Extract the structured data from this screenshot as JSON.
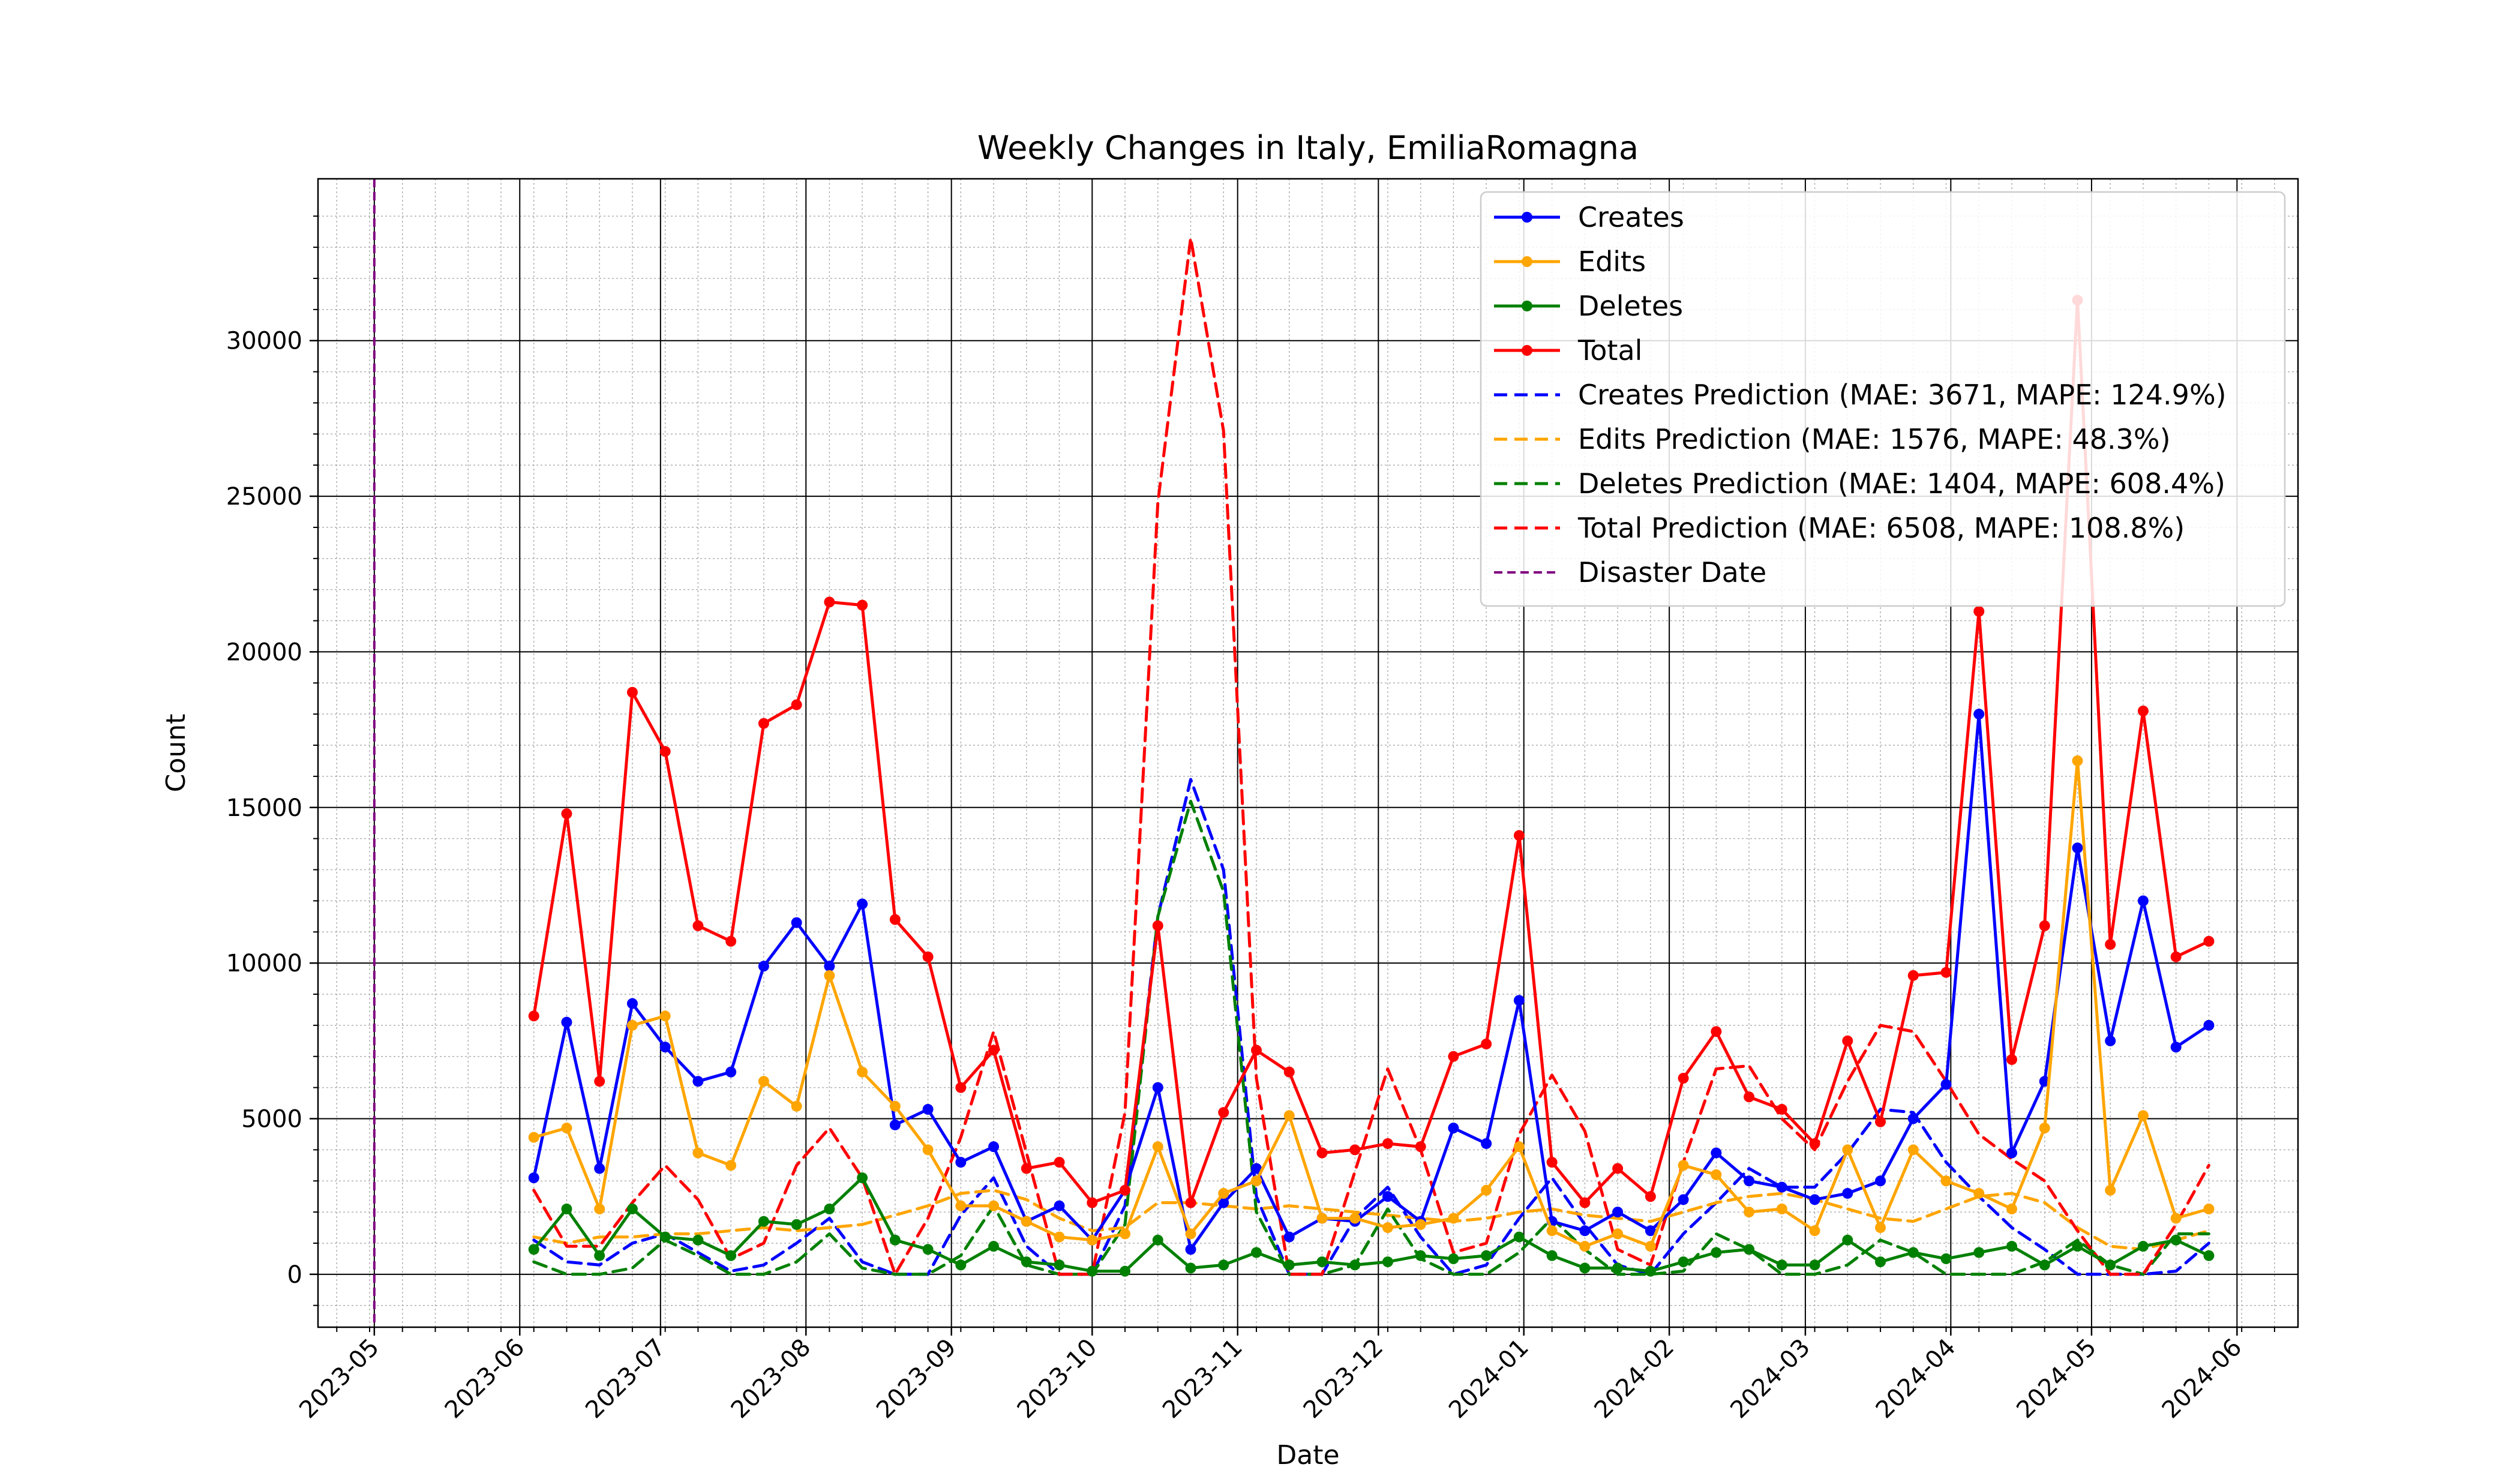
{
  "chart_data": {
    "type": "line",
    "title": "Weekly Changes in Italy, EmiliaRomagna",
    "xlabel": "Date",
    "ylabel": "Count",
    "xlim": [
      "2023-04-19",
      "2024-06-14"
    ],
    "ylim": [
      -1700,
      35200
    ],
    "x_ticks": [
      "2023-05",
      "2023-06",
      "2023-07",
      "2023-08",
      "2023-09",
      "2023-10",
      "2023-11",
      "2023-12",
      "2024-01",
      "2024-02",
      "2024-03",
      "2024-04",
      "2024-05",
      "2024-06"
    ],
    "y_ticks": [
      0,
      5000,
      10000,
      15000,
      20000,
      25000,
      30000
    ],
    "grid": true,
    "legend_position": "upper right",
    "dates": [
      "2023-06-04",
      "2023-06-11",
      "2023-06-18",
      "2023-06-25",
      "2023-07-02",
      "2023-07-09",
      "2023-07-16",
      "2023-07-23",
      "2023-07-30",
      "2023-08-06",
      "2023-08-13",
      "2023-08-20",
      "2023-08-27",
      "2023-09-03",
      "2023-09-10",
      "2023-09-17",
      "2023-09-24",
      "2023-10-01",
      "2023-10-08",
      "2023-10-15",
      "2023-10-22",
      "2023-10-29",
      "2023-11-05",
      "2023-11-12",
      "2023-11-19",
      "2023-11-26",
      "2023-12-03",
      "2023-12-10",
      "2023-12-17",
      "2023-12-24",
      "2023-12-31",
      "2024-01-07",
      "2024-01-14",
      "2024-01-21",
      "2024-01-28",
      "2024-02-04",
      "2024-02-11",
      "2024-02-18",
      "2024-02-25",
      "2024-03-03",
      "2024-03-10",
      "2024-03-17",
      "2024-03-24",
      "2024-03-31",
      "2024-04-07",
      "2024-04-14",
      "2024-04-21",
      "2024-04-28",
      "2024-05-05",
      "2024-05-12",
      "2024-05-19",
      "2024-05-26"
    ],
    "series": [
      {
        "name": "Creates",
        "style": "solid-marker",
        "color": "#0000ff",
        "values": [
          3100,
          8100,
          3400,
          8700,
          7300,
          6200,
          6500,
          9900,
          11300,
          9900,
          11900,
          4800,
          5300,
          3600,
          4100,
          1700,
          2200,
          1100,
          2700,
          6000,
          800,
          2300,
          3400,
          1200,
          1800,
          1700,
          2500,
          1700,
          4700,
          4200,
          8800,
          1700,
          1400,
          2000,
          1400,
          2400,
          3900,
          3000,
          2800,
          2400,
          2600,
          3000,
          5000,
          6100,
          18000,
          3900,
          6200,
          13700,
          7500,
          12000,
          7300,
          8000
        ]
      },
      {
        "name": "Edits",
        "style": "solid-marker",
        "color": "#ffa500",
        "values": [
          4400,
          4700,
          2100,
          8000,
          8300,
          3900,
          3500,
          6200,
          5400,
          9600,
          6500,
          5400,
          4000,
          2200,
          2200,
          1700,
          1200,
          1100,
          1300,
          4100,
          1300,
          2600,
          3000,
          5100,
          1800,
          1800,
          1500,
          1600,
          1800,
          2700,
          4100,
          1400,
          900,
          1300,
          900,
          3500,
          3200,
          2000,
          2100,
          1400,
          4000,
          1500,
          4000,
          3000,
          2600,
          2100,
          4700,
          16500,
          2700,
          5100,
          1800,
          2100
        ]
      },
      {
        "name": "Deletes",
        "style": "solid-marker",
        "color": "#008000",
        "values": [
          800,
          2100,
          600,
          2100,
          1200,
          1100,
          600,
          1700,
          1600,
          2100,
          3100,
          1100,
          800,
          300,
          900,
          400,
          300,
          100,
          100,
          1100,
          200,
          300,
          700,
          300,
          400,
          300,
          400,
          600,
          500,
          600,
          1200,
          600,
          200,
          200,
          100,
          400,
          700,
          800,
          300,
          300,
          1100,
          400,
          700,
          500,
          700,
          900,
          300,
          900,
          300,
          900,
          1100,
          600
        ]
      },
      {
        "name": "Total",
        "style": "solid-marker",
        "color": "#ff0000",
        "values": [
          8300,
          14800,
          6200,
          18700,
          16800,
          11200,
          10700,
          17700,
          18300,
          21600,
          21500,
          11400,
          10200,
          6000,
          7200,
          3400,
          3600,
          2300,
          2700,
          11200,
          2300,
          5200,
          7200,
          6500,
          3900,
          4000,
          4200,
          4100,
          7000,
          7400,
          14100,
          3600,
          2300,
          3400,
          2500,
          6300,
          7800,
          5700,
          5300,
          4200,
          7500,
          4900,
          9600,
          9700,
          21300,
          6900,
          11200,
          31300,
          10600,
          18100,
          10200,
          10700
        ]
      },
      {
        "name": "Creates Prediction (MAE: 3671, MAPE: 124.9%)",
        "style": "dashed",
        "color": "#0000ff",
        "values": [
          1100,
          400,
          300,
          1000,
          1300,
          700,
          100,
          300,
          1000,
          1800,
          400,
          0,
          0,
          1900,
          3100,
          900,
          0,
          0,
          2200,
          11500,
          15900,
          13000,
          2500,
          0,
          0,
          1800,
          2800,
          1200,
          0,
          300,
          1800,
          3100,
          1600,
          300,
          0,
          1300,
          2300,
          3400,
          2800,
          2800,
          3900,
          5300,
          5200,
          3600,
          2500,
          1500,
          800,
          0,
          0,
          0,
          100,
          1000
        ]
      },
      {
        "name": "Edits Prediction (MAE: 1576, MAPE: 48.3%)",
        "style": "dashed",
        "color": "#ffa500",
        "values": [
          1200,
          1000,
          1200,
          1200,
          1300,
          1300,
          1400,
          1500,
          1400,
          1500,
          1600,
          1900,
          2200,
          2600,
          2700,
          2400,
          1800,
          1400,
          1500,
          2300,
          2300,
          2200,
          2100,
          2200,
          2100,
          2000,
          1900,
          1800,
          1700,
          1800,
          2000,
          2100,
          1900,
          1800,
          1700,
          2000,
          2300,
          2500,
          2600,
          2400,
          2100,
          1800,
          1700,
          2100,
          2500,
          2600,
          2300,
          1500,
          900,
          800,
          1100,
          1400
        ]
      },
      {
        "name": "Deletes Prediction (MAE: 1404, MAPE: 608.4%)",
        "style": "dashed",
        "color": "#008000",
        "values": [
          400,
          0,
          0,
          200,
          1100,
          600,
          0,
          0,
          400,
          1300,
          200,
          0,
          0,
          600,
          2200,
          300,
          0,
          0,
          1600,
          11500,
          15200,
          12300,
          2000,
          0,
          0,
          300,
          2100,
          500,
          0,
          0,
          700,
          1800,
          800,
          0,
          0,
          100,
          1300,
          800,
          0,
          0,
          300,
          1100,
          700,
          0,
          0,
          0,
          400,
          1100,
          300,
          0,
          1300,
          1300
        ]
      },
      {
        "name": "Total Prediction (MAE: 6508, MAPE: 108.8%)",
        "style": "dashed",
        "color": "#ff0000",
        "values": [
          2700,
          900,
          900,
          2300,
          3500,
          2400,
          500,
          1000,
          3500,
          4700,
          3100,
          0,
          1800,
          4400,
          7800,
          3900,
          0,
          0,
          5200,
          24800,
          33300,
          27100,
          6300,
          0,
          0,
          3300,
          6600,
          4000,
          700,
          1000,
          4500,
          6400,
          4600,
          800,
          300,
          3600,
          6600,
          6700,
          5000,
          4000,
          6200,
          8000,
          7800,
          6200,
          4500,
          3700,
          3000,
          1400,
          0,
          0,
          1600,
          3500
        ]
      }
    ],
    "disaster": {
      "name": "Disaster Date",
      "date": "2023-05-01",
      "color": "#800080",
      "style": "dashed"
    }
  }
}
